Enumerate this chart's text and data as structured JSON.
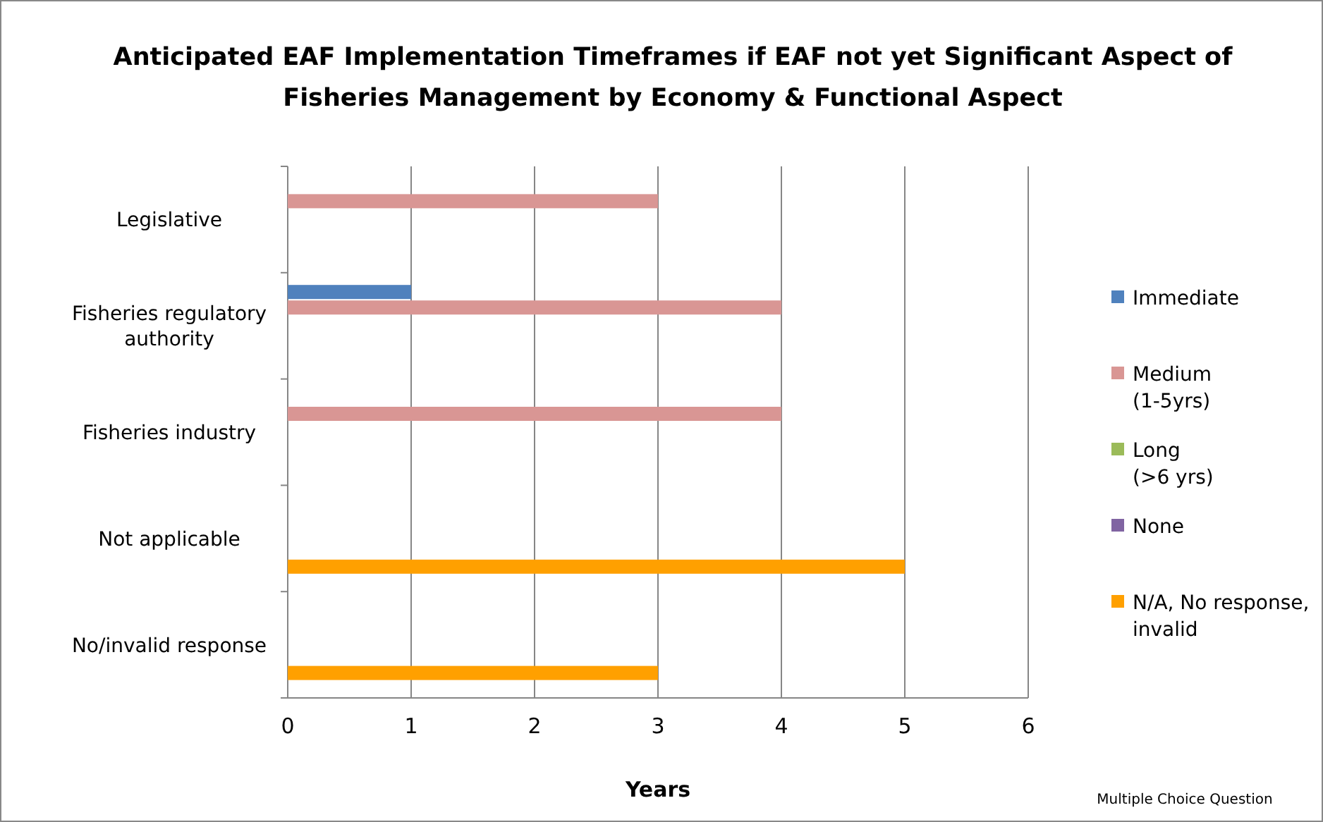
{
  "chart_data": {
    "type": "bar",
    "orientation": "horizontal",
    "title": "Anticipated EAF Implementation Timeframes if EAF not yet Significant Aspect of Fisheries Management by Economy & Functional Aspect",
    "xlabel": "Years",
    "categories": [
      "Legislative",
      "Fisheries regulatory authority",
      "Fisheries industry",
      "Not applicable",
      "No/invalid response"
    ],
    "series": [
      {
        "name": "Immediate",
        "color": "#4f81bd",
        "values": [
          null,
          1,
          null,
          null,
          null
        ]
      },
      {
        "name": "Medium (1-5yrs)",
        "color": "#d99694",
        "values": [
          3,
          4,
          4,
          null,
          null
        ]
      },
      {
        "name": "Long (>6 yrs)",
        "color": "#9bbb59",
        "values": [
          null,
          null,
          null,
          null,
          null
        ]
      },
      {
        "name": "None",
        "color": "#8064a2",
        "values": [
          null,
          null,
          null,
          null,
          null
        ]
      },
      {
        "name": "N/A, No response, invalid",
        "color": "#ffa000",
        "values": [
          null,
          null,
          null,
          5,
          3
        ]
      }
    ],
    "xlim": [
      0,
      6
    ],
    "xticks": [
      0,
      1,
      2,
      3,
      4,
      5,
      6
    ],
    "grid": "x",
    "legend": "right",
    "annotations": [
      "Multiple Choice Question"
    ]
  }
}
